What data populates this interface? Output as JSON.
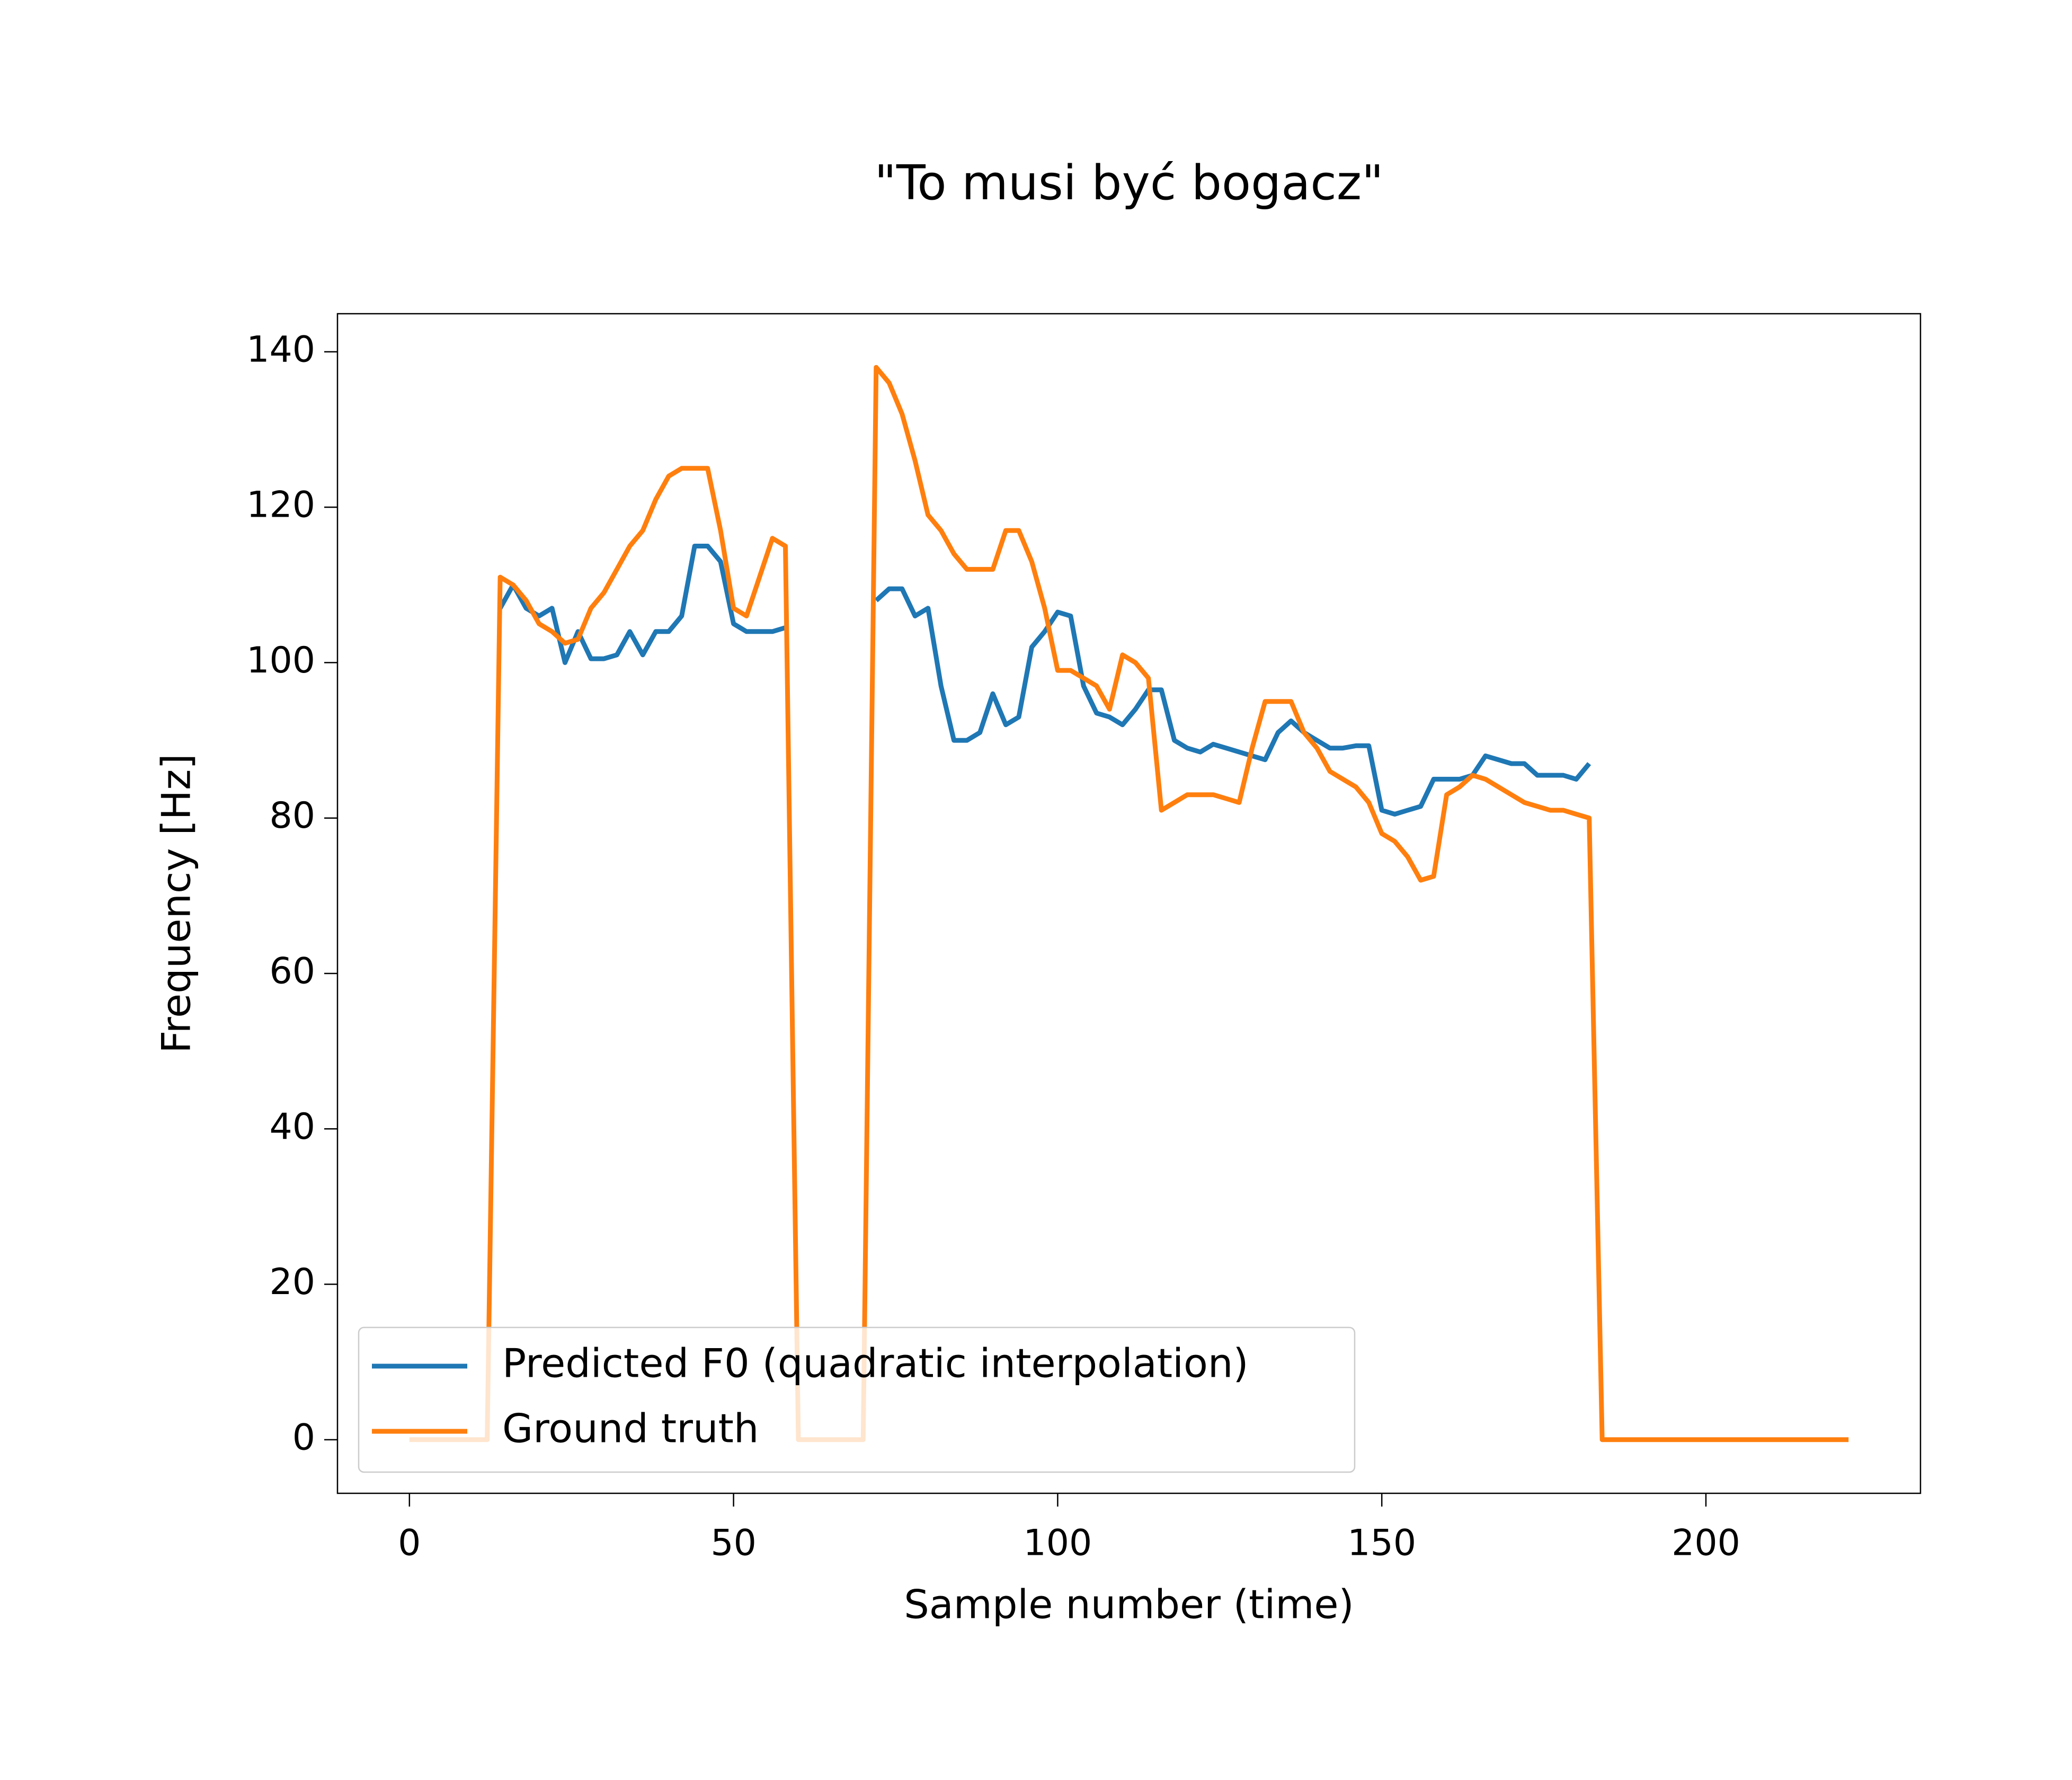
{
  "chart_data": {
    "type": "line",
    "title": "\"To musi być bogacz\"",
    "xlabel": "Sample number (time)",
    "ylabel": "Frequency [Hz]",
    "x": [
      0,
      2,
      4,
      6,
      8,
      10,
      12,
      14,
      16,
      18,
      20,
      22,
      24,
      26,
      28,
      30,
      32,
      34,
      36,
      38,
      40,
      42,
      44,
      46,
      48,
      50,
      52,
      54,
      56,
      58,
      60,
      62,
      64,
      66,
      68,
      70,
      72,
      74,
      76,
      78,
      80,
      82,
      84,
      86,
      88,
      90,
      92,
      94,
      96,
      98,
      100,
      102,
      104,
      106,
      108,
      110,
      112,
      114,
      116,
      118,
      120,
      122,
      124,
      126,
      128,
      130,
      132,
      134,
      136,
      138,
      140,
      142,
      144,
      146,
      148,
      150,
      152,
      154,
      156,
      158,
      160,
      162,
      164,
      166,
      168,
      170,
      172,
      174,
      176,
      178,
      180,
      182,
      184,
      186,
      188,
      190,
      192,
      194,
      196,
      198,
      200,
      202,
      204,
      206,
      208,
      210,
      212,
      214,
      216,
      218,
      220,
      222
    ],
    "series": [
      {
        "name": "Predicted F0 (quadratic interpolation)",
        "color": "#1f77b4",
        "values": [
          null,
          null,
          null,
          null,
          null,
          null,
          null,
          107,
          110,
          107,
          106,
          107,
          100,
          104,
          100.5,
          100.5,
          101,
          104,
          101,
          104,
          104,
          106,
          115,
          115,
          113,
          105,
          104,
          104,
          104,
          104.5,
          null,
          null,
          null,
          null,
          null,
          null,
          108,
          109.5,
          109.5,
          106,
          107,
          97,
          90,
          90,
          91,
          96,
          92,
          93,
          102,
          104,
          106.5,
          106,
          97,
          93.5,
          93,
          92,
          94,
          96.5,
          96.5,
          90,
          89,
          88.5,
          89.5,
          89,
          88.5,
          88,
          87.5,
          91,
          92.5,
          91,
          90,
          89,
          89,
          89.3,
          89.3,
          81,
          80.5,
          81,
          81.5,
          85,
          85,
          85,
          85.5,
          88,
          87.5,
          87,
          87,
          85.5,
          85.5,
          85.5,
          85,
          87,
          null,
          null,
          null,
          null,
          null,
          null,
          null,
          null,
          null,
          null,
          null,
          null,
          null,
          null,
          null,
          null,
          null,
          null,
          null,
          null
        ]
      },
      {
        "name": "Ground truth",
        "color": "#ff7f0e",
        "values": [
          0,
          0,
          0,
          0,
          0,
          0,
          0,
          111,
          110,
          108,
          105,
          104,
          102.5,
          103,
          107,
          109,
          112,
          115,
          117,
          121,
          124,
          125,
          125,
          125,
          117,
          107,
          106,
          111,
          116,
          115,
          0,
          0,
          0,
          0,
          0,
          0,
          138,
          136,
          132,
          126,
          119,
          117,
          114,
          112,
          112,
          112,
          117,
          117,
          113,
          107,
          99,
          99,
          98,
          97,
          94,
          101,
          100,
          98,
          81,
          82,
          83,
          83,
          83,
          82.5,
          82,
          89,
          95,
          95,
          95,
          91,
          89,
          86,
          85,
          84,
          82,
          78,
          77,
          75,
          72,
          72.5,
          83,
          84,
          85.5,
          85,
          84,
          83,
          82,
          81.5,
          81,
          81,
          80.5,
          80,
          0,
          0,
          0,
          0,
          0,
          0,
          0,
          0,
          0,
          0,
          0,
          0,
          0,
          0,
          0,
          0,
          0,
          0,
          0,
          0
        ]
      }
    ],
    "xlim": [
      -11.1,
      233.1
    ],
    "ylim": [
      -6.9,
      144.9
    ],
    "xticks": [
      0,
      50,
      100,
      150,
      200
    ],
    "yticks": [
      0,
      20,
      40,
      60,
      80,
      100,
      120,
      140
    ],
    "grid": false,
    "legend": "lower left"
  }
}
